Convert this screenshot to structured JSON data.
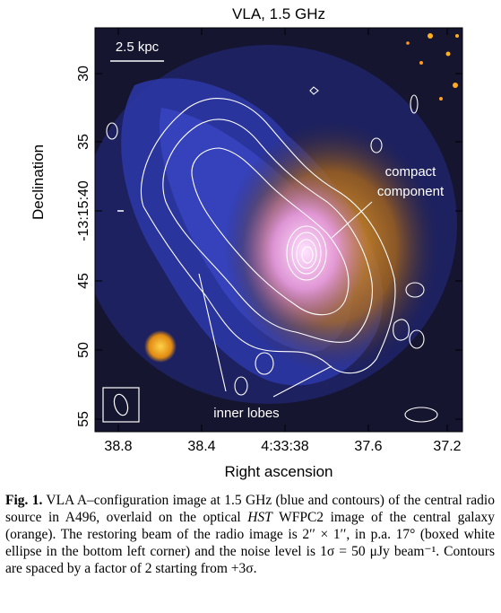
{
  "figure": {
    "title": "VLA, 1.5 GHz",
    "ylabel": "Declination",
    "xlabel": "Right ascension",
    "y_ticks": [
      "30",
      "35",
      "-13:15:40",
      "45",
      "50",
      "55"
    ],
    "x_ticks": [
      "38.8",
      "38.4",
      "4:33:38",
      "37.6",
      "37.2"
    ],
    "scale_bar_label": "2.5 kpc",
    "annotations": {
      "compact_line1": "compact",
      "compact_line2": "component",
      "inner_lobes": "inner lobes"
    },
    "colors": {
      "radio": "#3a45c8",
      "optical": "#d08a1c",
      "core": "#f2b6ff",
      "contour": "#ffffff"
    }
  },
  "caption": {
    "label": "Fig. 1.",
    "text_part1": "VLA A–configuration image at 1.5 GHz (blue and contours) of the central radio source in A496, overlaid on the optical ",
    "hst": "HST",
    "text_part2": " WFPC2 image of the central galaxy (orange). The restoring beam of the radio image is 2′′ × 1′′, in p.a. 17° (boxed white ellipse in the bottom left corner) and the noise level is 1σ = 50 μJy beam⁻¹. Contours are spaced by a factor of 2 starting from +3σ."
  }
}
